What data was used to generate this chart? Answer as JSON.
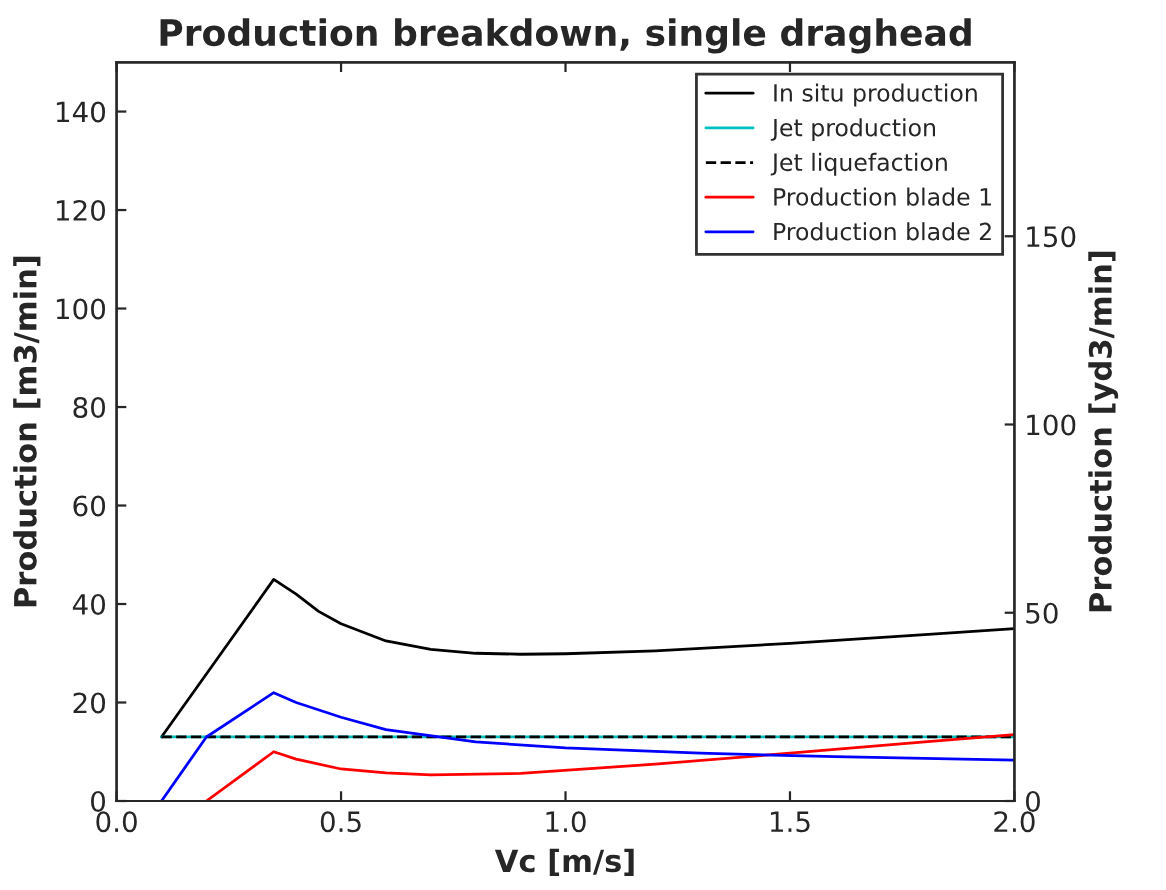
{
  "chart_data": {
    "type": "line",
    "title": "Production breakdown, single draghead",
    "xlabel": "Vc [m/s]",
    "ylabel": "Production [m3/min]",
    "y2label": "Production [yd3/min]",
    "xlim": [
      0,
      2
    ],
    "xticks": [
      {
        "value": 0,
        "label": "0.0"
      },
      0.5,
      {
        "value": 1,
        "label": "1.0"
      },
      1.5,
      {
        "value": 2,
        "label": "2.0"
      }
    ],
    "ylim": [
      0,
      150
    ],
    "yticks": [
      0,
      20,
      40,
      60,
      80,
      100,
      120,
      140
    ],
    "y2lim": [
      0,
      196.2
    ],
    "y2ticks": [
      0,
      50,
      100,
      150
    ],
    "legend": "top right",
    "grid": false,
    "series": [
      {
        "name": "In situ production",
        "color": "#000000",
        "line_style": "solid",
        "x": [
          0.1,
          0.35,
          0.4,
          0.45,
          0.5,
          0.6,
          0.7,
          0.8,
          0.9,
          1.0,
          1.2,
          1.5,
          1.8,
          2.0
        ],
        "values": [
          13,
          45,
          42,
          38.5,
          36,
          32.5,
          30.8,
          30,
          29.8,
          29.9,
          30.5,
          32,
          33.8,
          35
        ]
      },
      {
        "name": "Jet production",
        "color": "#00bfbf",
        "line_style": "solid",
        "x": [
          0.1,
          2.0
        ],
        "values": [
          13,
          13
        ]
      },
      {
        "name": "Jet liquefaction",
        "color": "#000000",
        "line_style": "dashed",
        "x": [
          0.1,
          2.0
        ],
        "values": [
          13,
          13
        ]
      },
      {
        "name": "Production blade 1",
        "color": "#ff0000",
        "line_style": "solid",
        "x": [
          0.2,
          0.35,
          0.4,
          0.5,
          0.6,
          0.7,
          0.9,
          1.2,
          1.5,
          1.8,
          2.0
        ],
        "values": [
          0,
          10,
          8.5,
          6.5,
          5.7,
          5.3,
          5.6,
          7.5,
          9.7,
          12,
          13.5
        ]
      },
      {
        "name": "Production blade 2",
        "color": "#0000ff",
        "line_style": "solid",
        "x": [
          0.1,
          0.2,
          0.35,
          0.4,
          0.5,
          0.6,
          0.8,
          1.0,
          1.3,
          1.6,
          2.0
        ],
        "values": [
          0,
          13,
          22,
          20,
          17,
          14.5,
          12,
          10.8,
          9.7,
          9,
          8.3
        ]
      }
    ]
  }
}
